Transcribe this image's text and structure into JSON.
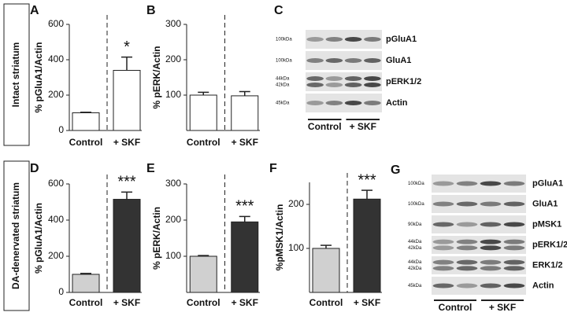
{
  "row_labels": [
    "Intact striatum",
    "DA-denervated striatum"
  ],
  "chart_data": [
    {
      "type": "bar",
      "label": "A",
      "ylabel": "% pGluA1/Actin",
      "categories": [
        "Control",
        "+ SKF"
      ],
      "values": [
        100,
        340
      ],
      "errors": [
        3,
        75
      ],
      "colors": [
        "#ffffff",
        "#ffffff"
      ],
      "ylim": [
        0,
        600
      ],
      "yticks": [
        0,
        200,
        400,
        600
      ],
      "annotation": "*"
    },
    {
      "type": "bar",
      "label": "B",
      "ylabel": "% pERK/Actin",
      "categories": [
        "Control",
        "+ SKF"
      ],
      "values": [
        100,
        98
      ],
      "errors": [
        8,
        12
      ],
      "colors": [
        "#ffffff",
        "#ffffff"
      ],
      "ylim": [
        0,
        300
      ],
      "yticks": [
        100,
        200,
        300
      ]
    },
    {
      "type": "bar",
      "label": "D",
      "ylabel": "% pGluA1/Actin",
      "categories": [
        "Control",
        "+ SKF"
      ],
      "values": [
        100,
        515
      ],
      "errors": [
        5,
        40
      ],
      "colors": [
        "#d0d0d0",
        "#333333"
      ],
      "ylim": [
        0,
        600
      ],
      "yticks": [
        0,
        200,
        400,
        600
      ],
      "annotation": "***"
    },
    {
      "type": "bar",
      "label": "E",
      "ylabel": "% pERK/Actin",
      "categories": [
        "Control",
        "+ SKF"
      ],
      "values": [
        100,
        195
      ],
      "errors": [
        2,
        15
      ],
      "colors": [
        "#d0d0d0",
        "#333333"
      ],
      "ylim": [
        0,
        300
      ],
      "yticks": [
        100,
        200,
        300
      ],
      "annotation": "***"
    },
    {
      "type": "bar",
      "label": "F",
      "ylabel": "%pMSK1/Actin",
      "categories": [
        "Control",
        "+ SKF"
      ],
      "values": [
        100,
        212
      ],
      "errors": [
        7,
        20
      ],
      "colors": [
        "#d0d0d0",
        "#333333"
      ],
      "ylim": [
        0,
        250
      ],
      "yticks": [
        100,
        200
      ],
      "annotation": "***"
    }
  ],
  "blots": [
    {
      "label": "C",
      "groups": [
        "Control",
        "+ SKF"
      ],
      "rows": [
        {
          "name": "pGluA1",
          "markers": [
            "100kDa"
          ]
        },
        {
          "name": "GluA1",
          "markers": [
            "100kDa"
          ]
        },
        {
          "name": "pERK1/2",
          "markers": [
            "44kDa",
            "42kDa"
          ]
        },
        {
          "name": "Actin",
          "markers": [
            "45kDa"
          ]
        }
      ]
    },
    {
      "label": "G",
      "groups": [
        "Control",
        "+ SKF"
      ],
      "rows": [
        {
          "name": "pGluA1",
          "markers": [
            "100kDa"
          ]
        },
        {
          "name": "GluA1",
          "markers": [
            "100kDa"
          ]
        },
        {
          "name": "pMSK1",
          "markers": [
            "90kDa"
          ]
        },
        {
          "name": "pERK1/2",
          "markers": [
            "44kDa",
            "42kDa"
          ]
        },
        {
          "name": "ERK1/2",
          "markers": [
            "44kDa",
            "42kDa"
          ]
        },
        {
          "name": "Actin",
          "markers": [
            "45kDa"
          ]
        }
      ]
    }
  ]
}
